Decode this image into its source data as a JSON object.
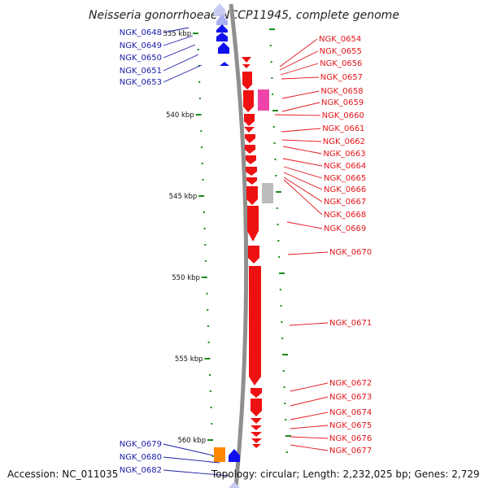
{
  "title": "Neisseria gonorrhoeae NCCP11945, complete genome",
  "accession": "Accession: NC_011035",
  "topology": "Topology: circular; Length: 2,232,025 bp; Genes: 2,729",
  "kbp_labels": [
    {
      "kbp": 535,
      "label": "535 kbp"
    },
    {
      "kbp": 540,
      "label": "540 kbp"
    },
    {
      "kbp": 545,
      "label": "545 kbp"
    },
    {
      "kbp": 550,
      "label": "550 kbp"
    },
    {
      "kbp": 555,
      "label": "555 kbp"
    },
    {
      "kbp": 560,
      "label": "560 kbp"
    }
  ],
  "left_genes": [
    "NGK_0648",
    "NGK_0649",
    "NGK_0650",
    "NGK_0651",
    "NGK_0653",
    "NGK_0679",
    "NGK_0680",
    "NGK_0682"
  ],
  "right_genes": [
    "NGK_0654",
    "NGK_0655",
    "NGK_0656",
    "NGK_0657",
    "NGK_0658",
    "NGK_0659",
    "NGK_0660",
    "NGK_0661",
    "NGK_0662",
    "NGK_0663",
    "NGK_0664",
    "NGK_0665",
    "NGK_0666",
    "NGK_0667",
    "NGK_0668",
    "NGK_0669",
    "NGK_0670",
    "NGK_0671",
    "NGK_0672",
    "NGK_0673",
    "NGK_0674",
    "NGK_0675",
    "NGK_0676",
    "NGK_0677"
  ],
  "colors": {
    "backbone": "#8f8f8f",
    "forward_cds": "#1010ee",
    "reverse_cds": "#ee1111",
    "pink_feature": "#ee44aa",
    "gray_feature": "#bbbbbb",
    "orange_feature": "#ff8800",
    "tick": "#1a8a1a",
    "label_blue": "#1a1aa8",
    "label_red": "#e4151b"
  }
}
